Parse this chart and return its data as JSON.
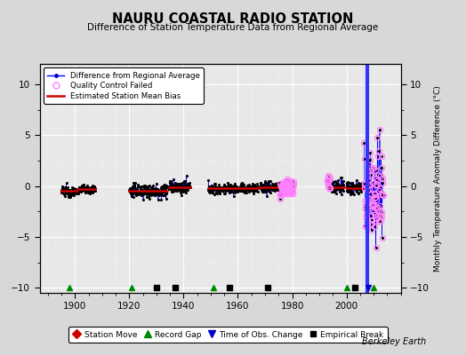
{
  "title": "NAURU COASTAL RADIO STATION",
  "subtitle": "Difference of Station Temperature Data from Regional Average",
  "ylabel": "Monthly Temperature Anomaly Difference (°C)",
  "credit": "Berkeley Earth",
  "xlim": [
    1887,
    2020
  ],
  "ylim": [
    -10.5,
    12
  ],
  "yticks": [
    -10,
    -5,
    0,
    5,
    10
  ],
  "xticks": [
    1900,
    1920,
    1940,
    1960,
    1980,
    2000
  ],
  "bg_color": "#d8d8d8",
  "plot_bg_color": "#e8e8e8",
  "grid_color": "#ffffff",
  "data_color": "#000000",
  "line_color": "#0000ff",
  "bias_color": "#cc0000",
  "qc_color": "#ff80ff",
  "vline_color": "#4444ff",
  "record_gap_color": "#008800",
  "emp_break_color": "#000000",
  "tobs_color": "#0000cc",
  "station_move_color": "#cc0000",
  "segments": [
    {
      "xstart": 1895.0,
      "xend": 1900.5,
      "mean": -0.5,
      "noise": 0.25,
      "bias": -0.5
    },
    {
      "xstart": 1901.0,
      "xend": 1907.5,
      "mean": -0.3,
      "noise": 0.2,
      "bias": -0.3
    },
    {
      "xstart": 1920.0,
      "xend": 1934.0,
      "mean": -0.45,
      "noise": 0.35,
      "bias": -0.45
    },
    {
      "xstart": 1934.5,
      "xend": 1942.5,
      "mean": -0.15,
      "noise": 0.3,
      "bias": -0.15
    },
    {
      "xstart": 1949.0,
      "xend": 1967.5,
      "mean": -0.25,
      "noise": 0.25,
      "bias": -0.25
    },
    {
      "xstart": 1968.0,
      "xend": 1975.5,
      "mean": -0.1,
      "noise": 0.3,
      "bias": -0.1
    },
    {
      "xstart": 1994.0,
      "xend": 1999.0,
      "mean": -0.1,
      "noise": 0.35,
      "bias": -0.1
    },
    {
      "xstart": 2000.0,
      "xend": 2006.0,
      "mean": -0.2,
      "noise": 0.35,
      "bias": -0.2
    }
  ],
  "qc_points": [
    {
      "xstart": 1975.5,
      "xend": 1980.5,
      "mean": -0.2,
      "noise": 0.4
    },
    {
      "xstart": 1993.0,
      "xend": 1994.0,
      "mean": 0.2,
      "noise": 0.6
    },
    {
      "xstart": 2006.5,
      "xend": 2013.5,
      "mean": -0.5,
      "noise": 2.5
    }
  ],
  "vertical_lines": [
    {
      "x": 2007.3,
      "color": "#3333ff",
      "lw": 1.5
    },
    {
      "x": 2008.0,
      "color": "#3333ff",
      "lw": 1.5
    }
  ],
  "record_gaps": [
    1898,
    1921,
    1951,
    2000,
    2010
  ],
  "empirical_breaks": [
    1930,
    1937,
    1957,
    1971,
    2003
  ],
  "time_of_obs_changes": [
    2008
  ],
  "station_moves": [],
  "marker_y": -10.0
}
